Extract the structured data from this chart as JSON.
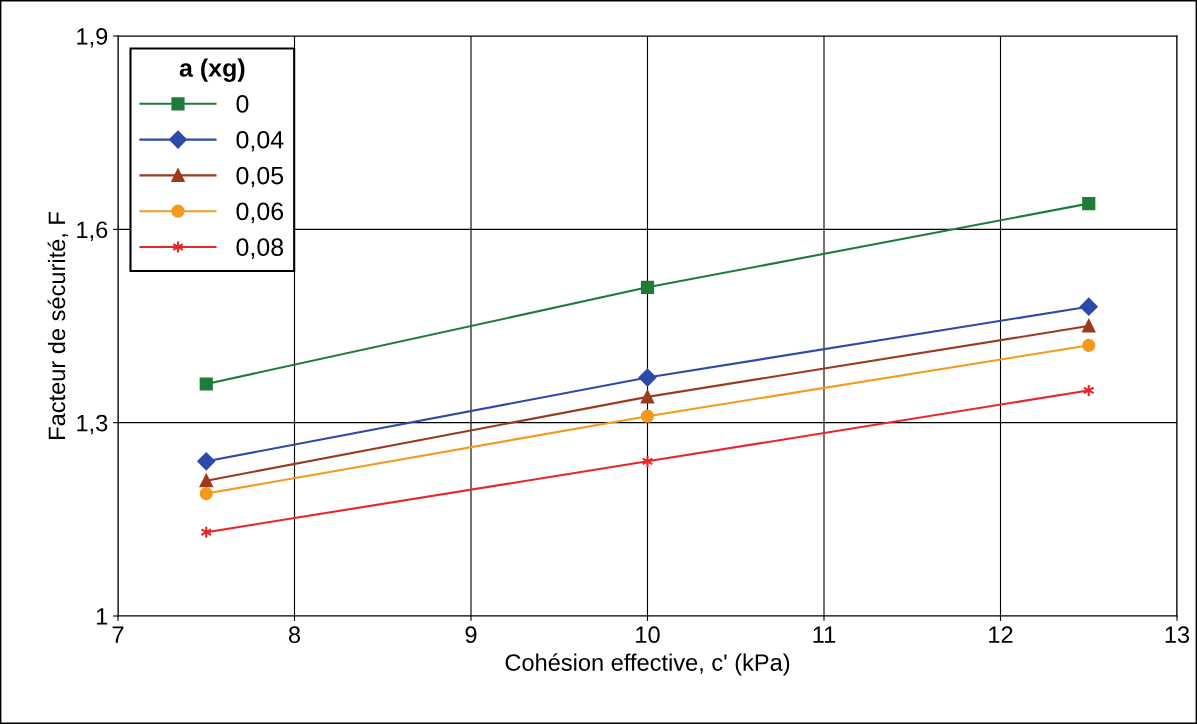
{
  "chart_data": {
    "type": "line",
    "xlabel": "Cohésion effective, c' (kPa)",
    "ylabel": "Facteur de sécurité, F",
    "legend_title": "a (xg)",
    "legend": "top left",
    "grid": true,
    "x": [
      7.5,
      10,
      12.5
    ],
    "xlim": [
      7,
      13
    ],
    "xticks": [
      7,
      8,
      9,
      10,
      11,
      12,
      13
    ],
    "ylim": [
      1,
      1.9
    ],
    "yticks": [
      {
        "value": 1,
        "label": "1"
      },
      {
        "value": 1.3,
        "label": "1,3"
      },
      {
        "value": 1.6,
        "label": "1,6"
      },
      {
        "value": 1.9,
        "label": "1,9"
      }
    ],
    "series": [
      {
        "name": "0",
        "color": "#1e7b3a",
        "marker": "square",
        "values": [
          1.36,
          1.51,
          1.64
        ]
      },
      {
        "name": "0,04",
        "color": "#2e4aa8",
        "marker": "diamond",
        "values": [
          1.24,
          1.37,
          1.48
        ]
      },
      {
        "name": "0,05",
        "color": "#9c3a1c",
        "marker": "triangle",
        "values": [
          1.21,
          1.34,
          1.45
        ]
      },
      {
        "name": "0,06",
        "color": "#f59a1e",
        "marker": "circle",
        "values": [
          1.19,
          1.31,
          1.42
        ]
      },
      {
        "name": "0,08",
        "color": "#e8262a",
        "marker": "cross",
        "values": [
          1.13,
          1.24,
          1.35
        ]
      }
    ]
  }
}
